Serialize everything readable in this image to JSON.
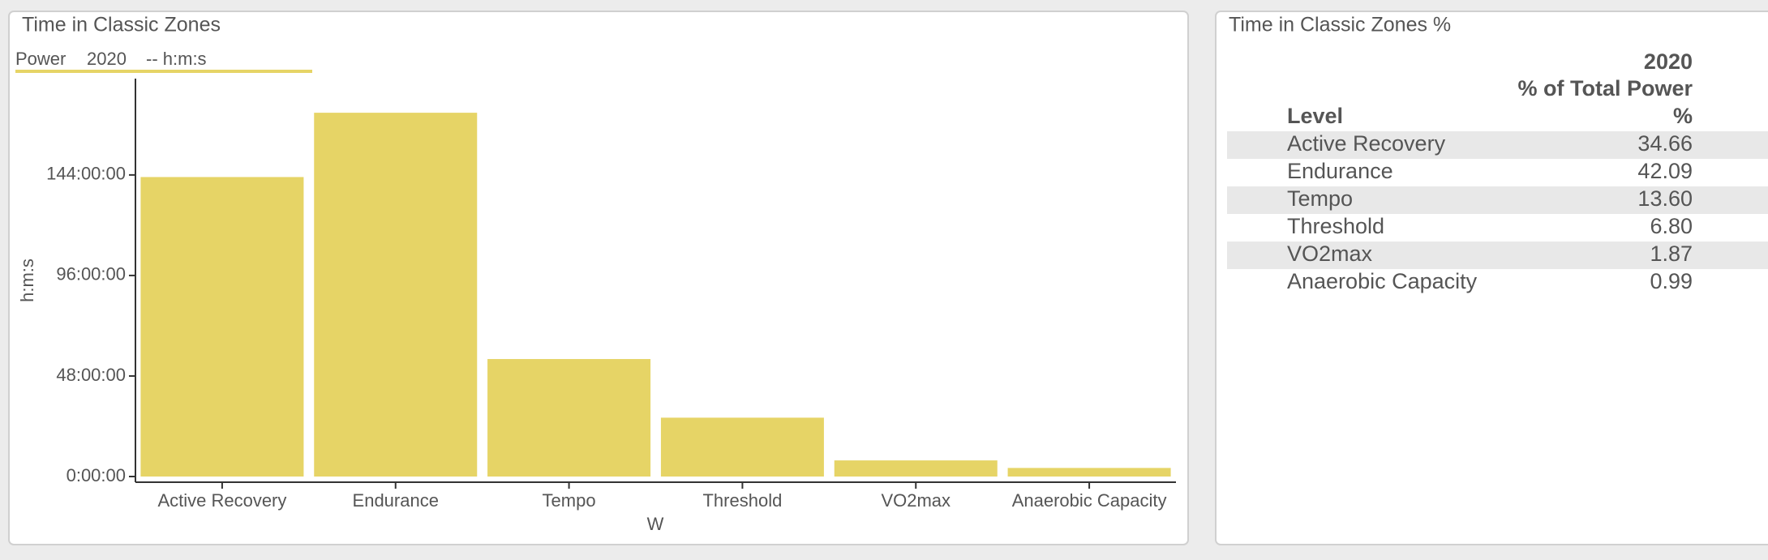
{
  "chart_data": {
    "type": "bar",
    "title": "Time in Classic Zones",
    "series": [
      {
        "name": "Power",
        "color": "#e6d466",
        "values": [
          143.0,
          173.7,
          56.1,
          28.1,
          7.7,
          4.1
        ]
      }
    ],
    "legend_period": "2020",
    "legend_unit": "-- h:m:s",
    "categories": [
      "Active Recovery",
      "Endurance",
      "Tempo",
      "Threshold",
      "VO2max",
      "Anaerobic Capacity"
    ],
    "x_label": "W",
    "y_label": "h:m:s",
    "ylim": [
      0,
      190
    ],
    "yticks": [
      {
        "value": 0,
        "label": "0:00:00"
      },
      {
        "value": 48,
        "label": "48:00:00"
      },
      {
        "value": 96,
        "label": "96:00:00"
      },
      {
        "value": 144,
        "label": "144:00:00"
      }
    ]
  },
  "table": {
    "title": "Time in Classic Zones %",
    "header": [
      "2020",
      "% of Total Power",
      "Level",
      "%"
    ],
    "rows": [
      [
        "Active Recovery",
        "34.66"
      ],
      [
        "Endurance",
        "42.09"
      ],
      [
        "Tempo",
        "13.60"
      ],
      [
        "Threshold",
        "6.80"
      ],
      [
        "VO2max",
        "1.87"
      ],
      [
        "Anaerobic Capacity",
        "0.99"
      ]
    ]
  }
}
